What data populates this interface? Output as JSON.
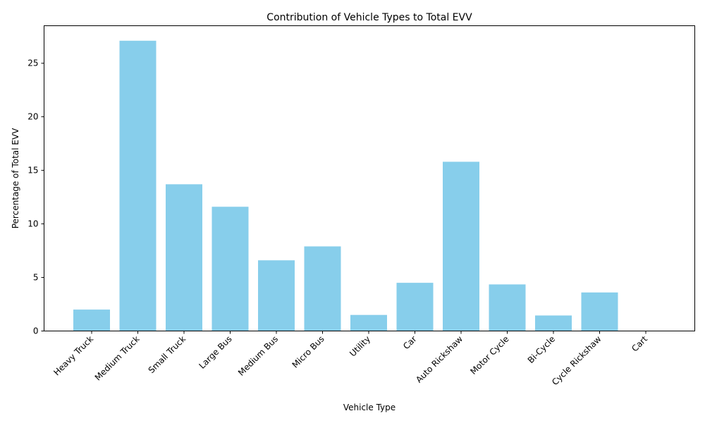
{
  "chart_data": {
    "type": "bar",
    "title": "Contribution of Vehicle Types to Total EVV",
    "xlabel": "Vehicle Type",
    "ylabel": "Percentage of Total EVV",
    "categories": [
      "Heavy Truck",
      "Medium Truck",
      "Small Truck",
      "Large Bus",
      "Medium Bus",
      "Micro Bus",
      "Utility",
      "Car",
      "Auto Rickshaw",
      "Motor Cycle",
      "Bi-Cycle",
      "Cycle Rickshaw",
      "Cart"
    ],
    "values": [
      2.0,
      27.1,
      13.7,
      11.6,
      6.6,
      7.9,
      1.5,
      4.5,
      15.8,
      4.35,
      1.45,
      3.6,
      0.0
    ],
    "ylim": [
      0,
      28.5
    ],
    "yticks": [
      0,
      5,
      10,
      15,
      20,
      25
    ],
    "bar_color": "#87ceeb",
    "grid": false,
    "legend": "none"
  }
}
